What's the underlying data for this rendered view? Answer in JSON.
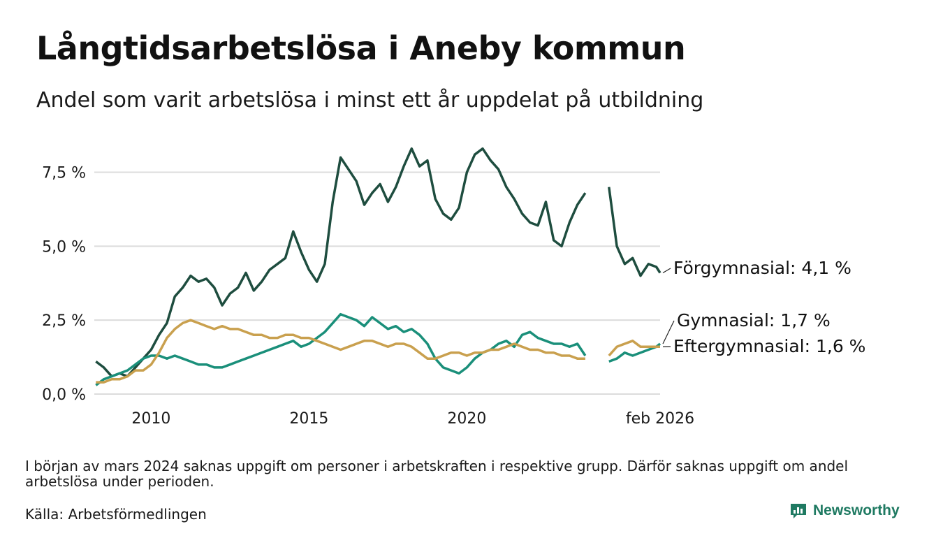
{
  "title": "Långtidsarbetslösa i Aneby kommun",
  "subtitle": "Andel som varit arbetslösa i minst ett år uppdelat på utbildning",
  "note": "I början av mars 2024 saknas uppgift om personer i arbetskraften i respektive grupp. Därför saknas uppgift om andel arbetslösa under perioden.",
  "source": "Källa: Arbetsförmedlingen",
  "brand": {
    "name": "Newsworthy",
    "icon": "bar-chart-icon",
    "color": "#1f7a62"
  },
  "chart_data": {
    "type": "line",
    "title": "Långtidsarbetslösa i Aneby kommun",
    "xlabel": "",
    "ylabel": "",
    "xlim": [
      2008.2,
      2026.12
    ],
    "ylim": [
      0,
      8.6
    ],
    "grid": true,
    "y_ticks": [
      0,
      2.5,
      5.0,
      7.5
    ],
    "y_tick_labels": [
      "0,0 %",
      "2,5 %",
      "5,0 %",
      "7,5 %"
    ],
    "x_ticks": [
      2010,
      2015,
      2020,
      2026.12
    ],
    "x_tick_labels": [
      "2010",
      "2015",
      "2020",
      "feb 2026"
    ],
    "gap": [
      2024.0,
      2024.4
    ],
    "series": [
      {
        "name": "Förgymnasial",
        "label": "Förgymnasial: 4,1 %",
        "color": "#1e4d3f",
        "points": [
          [
            2008.25,
            1.1
          ],
          [
            2008.5,
            0.9
          ],
          [
            2008.75,
            0.6
          ],
          [
            2009.0,
            0.7
          ],
          [
            2009.25,
            0.6
          ],
          [
            2009.5,
            0.9
          ],
          [
            2009.75,
            1.2
          ],
          [
            2010.0,
            1.5
          ],
          [
            2010.25,
            2.0
          ],
          [
            2010.5,
            2.4
          ],
          [
            2010.75,
            3.3
          ],
          [
            2011.0,
            3.6
          ],
          [
            2011.25,
            4.0
          ],
          [
            2011.5,
            3.8
          ],
          [
            2011.75,
            3.9
          ],
          [
            2012.0,
            3.6
          ],
          [
            2012.25,
            3.0
          ],
          [
            2012.5,
            3.4
          ],
          [
            2012.75,
            3.6
          ],
          [
            2013.0,
            4.1
          ],
          [
            2013.25,
            3.5
          ],
          [
            2013.5,
            3.8
          ],
          [
            2013.75,
            4.2
          ],
          [
            2014.0,
            4.4
          ],
          [
            2014.25,
            4.6
          ],
          [
            2014.5,
            5.5
          ],
          [
            2014.75,
            4.8
          ],
          [
            2015.0,
            4.2
          ],
          [
            2015.25,
            3.8
          ],
          [
            2015.5,
            4.4
          ],
          [
            2015.75,
            6.5
          ],
          [
            2016.0,
            8.0
          ],
          [
            2016.25,
            7.6
          ],
          [
            2016.5,
            7.2
          ],
          [
            2016.75,
            6.4
          ],
          [
            2017.0,
            6.8
          ],
          [
            2017.25,
            7.1
          ],
          [
            2017.5,
            6.5
          ],
          [
            2017.75,
            7.0
          ],
          [
            2018.0,
            7.7
          ],
          [
            2018.25,
            8.3
          ],
          [
            2018.5,
            7.7
          ],
          [
            2018.75,
            7.9
          ],
          [
            2019.0,
            6.6
          ],
          [
            2019.25,
            6.1
          ],
          [
            2019.5,
            5.9
          ],
          [
            2019.75,
            6.3
          ],
          [
            2020.0,
            7.5
          ],
          [
            2020.25,
            8.1
          ],
          [
            2020.5,
            8.3
          ],
          [
            2020.75,
            7.9
          ],
          [
            2021.0,
            7.6
          ],
          [
            2021.25,
            7.0
          ],
          [
            2021.5,
            6.6
          ],
          [
            2021.75,
            6.1
          ],
          [
            2022.0,
            5.8
          ],
          [
            2022.25,
            5.7
          ],
          [
            2022.5,
            6.5
          ],
          [
            2022.75,
            5.2
          ],
          [
            2023.0,
            5.0
          ],
          [
            2023.25,
            5.8
          ],
          [
            2023.5,
            6.4
          ],
          [
            2023.75,
            6.8
          ],
          [
            2024.0,
            null
          ],
          [
            2024.5,
            7.0
          ],
          [
            2024.75,
            5.0
          ],
          [
            2025.0,
            4.4
          ],
          [
            2025.25,
            4.6
          ],
          [
            2025.5,
            4.0
          ],
          [
            2025.75,
            4.4
          ],
          [
            2026.0,
            4.3
          ],
          [
            2026.12,
            4.1
          ]
        ]
      },
      {
        "name": "Gymnasial",
        "label": "Gymnasial: 1,7 %",
        "color": "#1a8f7a",
        "points": [
          [
            2008.25,
            0.3
          ],
          [
            2008.5,
            0.5
          ],
          [
            2008.75,
            0.6
          ],
          [
            2009.0,
            0.7
          ],
          [
            2009.25,
            0.8
          ],
          [
            2009.5,
            1.0
          ],
          [
            2009.75,
            1.2
          ],
          [
            2010.0,
            1.3
          ],
          [
            2010.25,
            1.3
          ],
          [
            2010.5,
            1.2
          ],
          [
            2010.75,
            1.3
          ],
          [
            2011.0,
            1.2
          ],
          [
            2011.25,
            1.1
          ],
          [
            2011.5,
            1.0
          ],
          [
            2011.75,
            1.0
          ],
          [
            2012.0,
            0.9
          ],
          [
            2012.25,
            0.9
          ],
          [
            2012.5,
            1.0
          ],
          [
            2012.75,
            1.1
          ],
          [
            2013.0,
            1.2
          ],
          [
            2013.25,
            1.3
          ],
          [
            2013.5,
            1.4
          ],
          [
            2013.75,
            1.5
          ],
          [
            2014.0,
            1.6
          ],
          [
            2014.25,
            1.7
          ],
          [
            2014.5,
            1.8
          ],
          [
            2014.75,
            1.6
          ],
          [
            2015.0,
            1.7
          ],
          [
            2015.25,
            1.9
          ],
          [
            2015.5,
            2.1
          ],
          [
            2015.75,
            2.4
          ],
          [
            2016.0,
            2.7
          ],
          [
            2016.25,
            2.6
          ],
          [
            2016.5,
            2.5
          ],
          [
            2016.75,
            2.3
          ],
          [
            2017.0,
            2.6
          ],
          [
            2017.25,
            2.4
          ],
          [
            2017.5,
            2.2
          ],
          [
            2017.75,
            2.3
          ],
          [
            2018.0,
            2.1
          ],
          [
            2018.25,
            2.2
          ],
          [
            2018.5,
            2.0
          ],
          [
            2018.75,
            1.7
          ],
          [
            2019.0,
            1.2
          ],
          [
            2019.25,
            0.9
          ],
          [
            2019.5,
            0.8
          ],
          [
            2019.75,
            0.7
          ],
          [
            2020.0,
            0.9
          ],
          [
            2020.25,
            1.2
          ],
          [
            2020.5,
            1.4
          ],
          [
            2020.75,
            1.5
          ],
          [
            2021.0,
            1.7
          ],
          [
            2021.25,
            1.8
          ],
          [
            2021.5,
            1.6
          ],
          [
            2021.75,
            2.0
          ],
          [
            2022.0,
            2.1
          ],
          [
            2022.25,
            1.9
          ],
          [
            2022.5,
            1.8
          ],
          [
            2022.75,
            1.7
          ],
          [
            2023.0,
            1.7
          ],
          [
            2023.25,
            1.6
          ],
          [
            2023.5,
            1.7
          ],
          [
            2023.75,
            1.3
          ],
          [
            2024.0,
            null
          ],
          [
            2024.5,
            1.1
          ],
          [
            2024.75,
            1.2
          ],
          [
            2025.0,
            1.4
          ],
          [
            2025.25,
            1.3
          ],
          [
            2025.5,
            1.4
          ],
          [
            2025.75,
            1.5
          ],
          [
            2026.0,
            1.6
          ],
          [
            2026.12,
            1.7
          ]
        ]
      },
      {
        "name": "Eftergymnasial",
        "label": "Eftergymnasial: 1,6 %",
        "color": "#c9a04e",
        "points": [
          [
            2008.25,
            0.4
          ],
          [
            2008.5,
            0.4
          ],
          [
            2008.75,
            0.5
          ],
          [
            2009.0,
            0.5
          ],
          [
            2009.25,
            0.6
          ],
          [
            2009.5,
            0.8
          ],
          [
            2009.75,
            0.8
          ],
          [
            2010.0,
            1.0
          ],
          [
            2010.25,
            1.4
          ],
          [
            2010.5,
            1.9
          ],
          [
            2010.75,
            2.2
          ],
          [
            2011.0,
            2.4
          ],
          [
            2011.25,
            2.5
          ],
          [
            2011.5,
            2.4
          ],
          [
            2011.75,
            2.3
          ],
          [
            2012.0,
            2.2
          ],
          [
            2012.25,
            2.3
          ],
          [
            2012.5,
            2.2
          ],
          [
            2012.75,
            2.2
          ],
          [
            2013.0,
            2.1
          ],
          [
            2013.25,
            2.0
          ],
          [
            2013.5,
            2.0
          ],
          [
            2013.75,
            1.9
          ],
          [
            2014.0,
            1.9
          ],
          [
            2014.25,
            2.0
          ],
          [
            2014.5,
            2.0
          ],
          [
            2014.75,
            1.9
          ],
          [
            2015.0,
            1.9
          ],
          [
            2015.25,
            1.8
          ],
          [
            2015.5,
            1.7
          ],
          [
            2015.75,
            1.6
          ],
          [
            2016.0,
            1.5
          ],
          [
            2016.25,
            1.6
          ],
          [
            2016.5,
            1.7
          ],
          [
            2016.75,
            1.8
          ],
          [
            2017.0,
            1.8
          ],
          [
            2017.25,
            1.7
          ],
          [
            2017.5,
            1.6
          ],
          [
            2017.75,
            1.7
          ],
          [
            2018.0,
            1.7
          ],
          [
            2018.25,
            1.6
          ],
          [
            2018.5,
            1.4
          ],
          [
            2018.75,
            1.2
          ],
          [
            2019.0,
            1.2
          ],
          [
            2019.25,
            1.3
          ],
          [
            2019.5,
            1.4
          ],
          [
            2019.75,
            1.4
          ],
          [
            2020.0,
            1.3
          ],
          [
            2020.25,
            1.4
          ],
          [
            2020.5,
            1.4
          ],
          [
            2020.75,
            1.5
          ],
          [
            2021.0,
            1.5
          ],
          [
            2021.25,
            1.6
          ],
          [
            2021.5,
            1.7
          ],
          [
            2021.75,
            1.6
          ],
          [
            2022.0,
            1.5
          ],
          [
            2022.25,
            1.5
          ],
          [
            2022.5,
            1.4
          ],
          [
            2022.75,
            1.4
          ],
          [
            2023.0,
            1.3
          ],
          [
            2023.25,
            1.3
          ],
          [
            2023.5,
            1.2
          ],
          [
            2023.75,
            1.2
          ],
          [
            2024.0,
            null
          ],
          [
            2024.5,
            1.3
          ],
          [
            2024.75,
            1.6
          ],
          [
            2025.0,
            1.7
          ],
          [
            2025.25,
            1.8
          ],
          [
            2025.5,
            1.6
          ],
          [
            2025.75,
            1.6
          ],
          [
            2026.0,
            1.6
          ],
          [
            2026.12,
            1.6
          ]
        ]
      }
    ]
  }
}
